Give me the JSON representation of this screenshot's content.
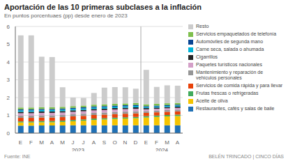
{
  "chart_data": {
    "type": "bar",
    "stacked": true,
    "title": "Aportación de las 10 primeras subclases a la inflación",
    "subtitle": "En puntos porcentuaes (pp) desde enero de 2023",
    "annotations": [
      "Fuente: INE",
      "BELÉN TRINCADO | CINCO DÍAS"
    ],
    "categories": [
      "E",
      "F",
      "M",
      "A",
      "M",
      "J",
      "J",
      "A",
      "S",
      "O",
      "N",
      "D",
      "E",
      "F",
      "M",
      "A"
    ],
    "x_groups": [
      {
        "label": "2023",
        "count": 12
      },
      {
        "label": "2024",
        "count": 4
      }
    ],
    "series": [
      {
        "name": "Restaurantes, cafés y salas de baile",
        "color": "#2171b5",
        "values": [
          0.42,
          0.42,
          0.43,
          0.43,
          0.43,
          0.44,
          0.44,
          0.44,
          0.44,
          0.44,
          0.44,
          0.44,
          0.44,
          0.44,
          0.44,
          0.44
        ]
      },
      {
        "name": "Aceite de oliva",
        "color": "#f5c400",
        "values": [
          0.18,
          0.18,
          0.18,
          0.18,
          0.2,
          0.23,
          0.26,
          0.3,
          0.33,
          0.36,
          0.38,
          0.4,
          0.44,
          0.47,
          0.5,
          0.52
        ]
      },
      {
        "name": "Frutas frescas o refrigeradas",
        "color": "#41ab5d",
        "values": [
          0.06,
          0.06,
          0.07,
          0.07,
          0.07,
          0.07,
          0.07,
          0.08,
          0.07,
          0.07,
          0.07,
          0.07,
          0.08,
          0.08,
          0.08,
          0.08
        ]
      },
      {
        "name": "Servicios de comida rápida y para llevar",
        "color": "#e8420a",
        "values": [
          0.2,
          0.2,
          0.2,
          0.2,
          0.2,
          0.2,
          0.2,
          0.2,
          0.2,
          0.2,
          0.2,
          0.2,
          0.18,
          0.18,
          0.18,
          0.18
        ]
      },
      {
        "name": "Mantenimiento y reparación de vehículos personales",
        "color": "#969696",
        "values": [
          0.12,
          0.12,
          0.12,
          0.12,
          0.12,
          0.12,
          0.12,
          0.12,
          0.12,
          0.12,
          0.12,
          0.12,
          0.1,
          0.1,
          0.1,
          0.1
        ]
      },
      {
        "name": "Paquetes turísticos nacionales",
        "color": "#d4a0c8",
        "values": [
          0.14,
          0.14,
          0.14,
          0.14,
          0.14,
          0.14,
          0.14,
          0.14,
          0.14,
          0.14,
          0.14,
          0.14,
          0.1,
          0.1,
          0.1,
          0.1
        ]
      },
      {
        "name": "Cigarrillos",
        "color": "#252525",
        "values": [
          0.08,
          0.08,
          0.08,
          0.08,
          0.08,
          0.08,
          0.08,
          0.08,
          0.08,
          0.08,
          0.08,
          0.08,
          0.07,
          0.07,
          0.07,
          0.07
        ]
      },
      {
        "name": "Carne seca, salada o ahumada",
        "color": "#00b4d8",
        "values": [
          0.08,
          0.08,
          0.08,
          0.08,
          0.08,
          0.08,
          0.08,
          0.08,
          0.08,
          0.08,
          0.08,
          0.08,
          0.06,
          0.06,
          0.06,
          0.06
        ]
      },
      {
        "name": "Automóviles de segunda mano",
        "color": "#084594",
        "values": [
          0.06,
          0.06,
          0.06,
          0.06,
          0.06,
          0.06,
          0.06,
          0.06,
          0.06,
          0.06,
          0.06,
          0.06,
          0.05,
          0.05,
          0.05,
          0.05
        ]
      },
      {
        "name": "Servicios empaquetados de telefonía",
        "color": "#7fbf4d",
        "values": [
          0.1,
          0.1,
          0.1,
          0.1,
          0.1,
          0.1,
          0.1,
          0.1,
          0.1,
          0.1,
          0.1,
          0.1,
          0.1,
          0.1,
          0.1,
          0.1
        ]
      },
      {
        "name": "Resto",
        "color": "#cccccc",
        "values": [
          4.06,
          4.06,
          2.84,
          2.82,
          1.1,
          0.48,
          0.43,
          0.66,
          0.94,
          0.94,
          0.91,
          0.81,
          1.94,
          0.95,
          1.01,
          0.97
        ]
      }
    ],
    "ylim": [
      0,
      6
    ],
    "yticks": [
      0,
      1,
      2,
      3,
      4,
      5,
      6
    ],
    "grid": true,
    "legend": "right"
  }
}
